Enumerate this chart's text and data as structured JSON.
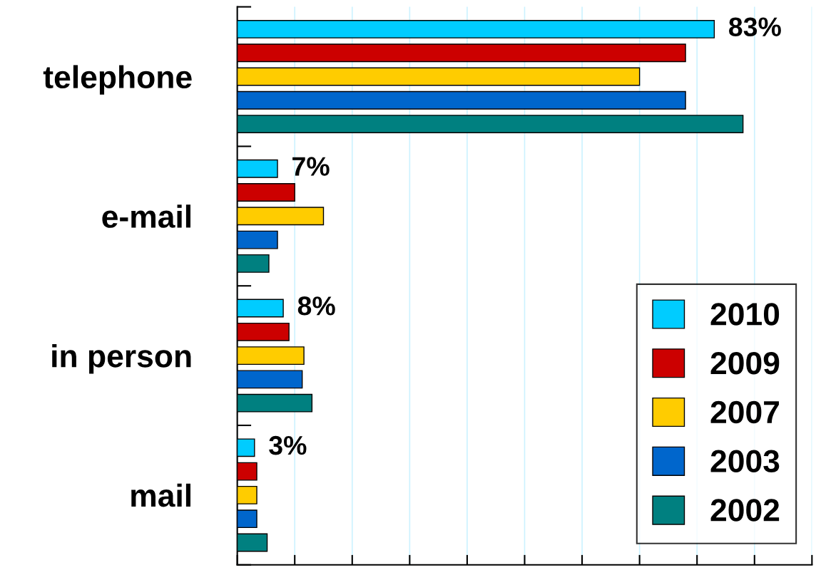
{
  "chart_data": {
    "type": "bar",
    "orientation": "horizontal",
    "categories": [
      "telephone",
      "e-mail",
      "in person",
      "mail"
    ],
    "series": [
      {
        "name": "2010",
        "color": "#00ccff",
        "values": [
          83,
          7,
          8,
          3
        ],
        "value_labels": [
          "83%",
          "7%",
          "8%",
          "3%"
        ]
      },
      {
        "name": "2009",
        "color": "#cc0000",
        "values": [
          78,
          10,
          9,
          3.4
        ]
      },
      {
        "name": "2007",
        "color": "#ffcc00",
        "values": [
          70,
          15,
          11.6,
          3.4
        ]
      },
      {
        "name": "2003",
        "color": "#0066cc",
        "values": [
          78,
          7,
          11.3,
          3.4
        ]
      },
      {
        "name": "2002",
        "color": "#008080",
        "values": [
          88,
          5.5,
          13,
          5.2
        ]
      }
    ],
    "xlim": [
      0,
      100
    ],
    "xticks": [
      {
        "value": 0,
        "label": null
      },
      {
        "value": 10,
        "label": null
      },
      {
        "value": 20,
        "label": null
      },
      {
        "value": 30,
        "label": null
      },
      {
        "value": 40,
        "label": null
      },
      {
        "value": 50,
        "label": null
      },
      {
        "value": 60,
        "label": null
      },
      {
        "value": 70,
        "label": null
      },
      {
        "value": 80,
        "label": null
      },
      {
        "value": 90,
        "label": null
      },
      {
        "value": 100,
        "label": null
      }
    ],
    "tick_labels": "y",
    "grid": "x",
    "legend": "bottom right"
  }
}
